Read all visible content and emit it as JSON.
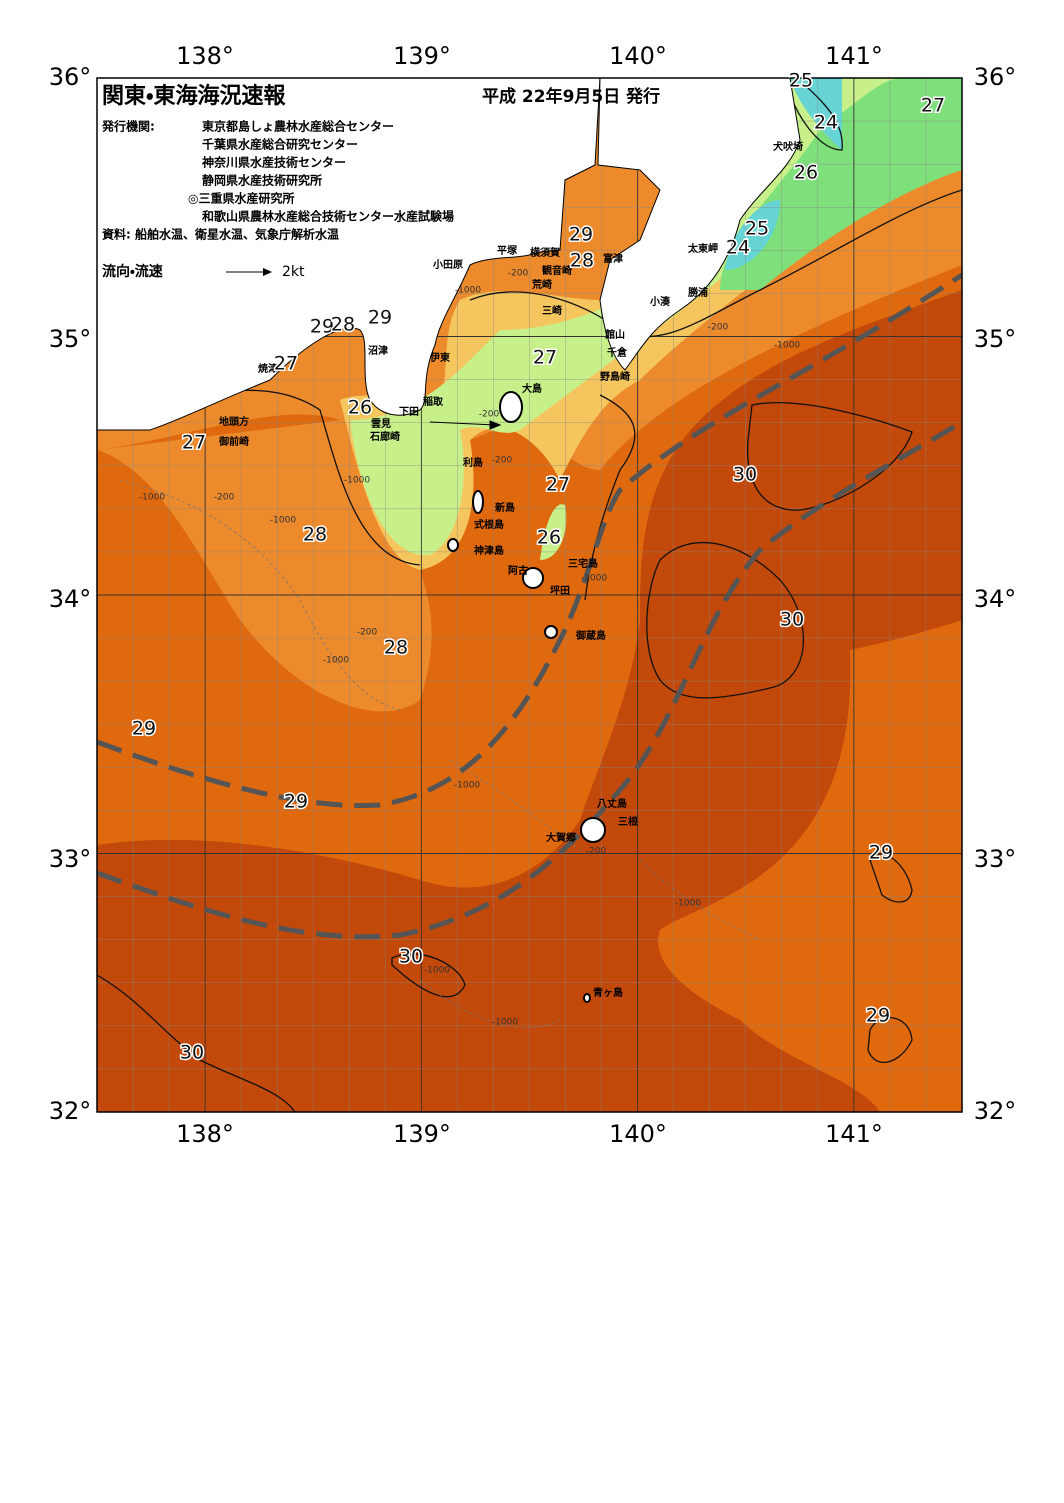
{
  "header": {
    "title": "関東・東海海況速報",
    "date": "平成 22年9月5日 発行",
    "issuer_label": "発行機関:",
    "issuers": [
      "東京都島しょ農林水産総合センター",
      "千葉県水産総合研究センター",
      "神奈川県水産技術センター",
      "静岡県水産技術研究所",
      "◎三重県水産研究所",
      "和歌山県農林水産総合技術センター水産試験場"
    ],
    "source": "資料: 船舶水温、衛星水温、気象庁解析水温",
    "flow_legend": "流向・流速",
    "flow_unit": "2kt"
  },
  "axes": {
    "lon_labels": [
      "138°",
      "139°",
      "140°",
      "141°"
    ],
    "lat_labels": [
      "36°",
      "35°",
      "34°",
      "33°",
      "32°"
    ]
  },
  "places": [
    "小田原",
    "平塚",
    "横須賀",
    "富津",
    "観音崎",
    "荒崎",
    "三崎",
    "小湊",
    "勝浦",
    "太東岬",
    "犬吠埼",
    "館山",
    "千倉",
    "野島崎",
    "沼津",
    "伊東",
    "焼津",
    "稲取",
    "下田",
    "雲見",
    "石廊崎",
    "地頭方",
    "御前崎",
    "大島",
    "利島",
    "新島",
    "式根島",
    "神津島",
    "三宅島",
    "阿古",
    "坪田",
    "御蔵島",
    "八丈島",
    "三根",
    "大賀郷",
    "青ヶ島"
  ],
  "isotherm_labels": [
    "25",
    "24",
    "27",
    "26",
    "25",
    "24",
    "29",
    "28",
    "29",
    "29",
    "28",
    "27",
    "27",
    "26",
    "27",
    "30",
    "27",
    "28",
    "26",
    "30",
    "28",
    "29",
    "29",
    "29",
    "30",
    "29",
    "30"
  ],
  "depth_labels": [
    "-200",
    "-1000",
    "-200",
    "-1000",
    "-200",
    "-200",
    "-1000",
    "-200",
    "-1000",
    "-200",
    "-1000",
    "-1000",
    "-1000",
    "-1000",
    "-200",
    "-1000",
    "-1000",
    "-1000"
  ]
}
